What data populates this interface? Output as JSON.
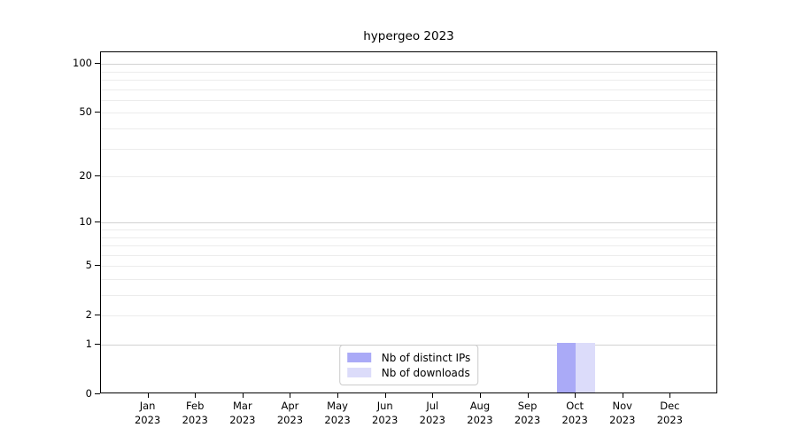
{
  "chart_data": {
    "type": "bar",
    "title": "hypergeo 2023",
    "categories": [
      "Jan",
      "Feb",
      "Mar",
      "Apr",
      "May",
      "Jun",
      "Jul",
      "Aug",
      "Sep",
      "Oct",
      "Nov",
      "Dec"
    ],
    "year": "2023",
    "series": [
      {
        "name": "Nb of distinct IPs",
        "color": "#aaaaf7",
        "values": [
          0,
          0,
          0,
          0,
          0,
          0,
          0,
          0,
          0,
          1,
          0,
          0
        ]
      },
      {
        "name": "Nb of downloads",
        "color": "#dcdcfa",
        "values": [
          0,
          0,
          0,
          0,
          0,
          0,
          0,
          0,
          0,
          1,
          0,
          0
        ]
      }
    ],
    "yscale": "log1p",
    "ylim": [
      0,
      118
    ],
    "yticks": [
      0,
      1,
      2,
      5,
      10,
      20,
      50,
      100
    ],
    "grid": {
      "major": [
        1,
        10,
        100
      ],
      "minor": [
        2,
        3,
        4,
        5,
        6,
        7,
        8,
        9,
        20,
        30,
        40,
        50,
        60,
        70,
        80,
        90
      ]
    },
    "legend_position": "lower center",
    "colors": {
      "major_grid": "#d2d2d2",
      "minor_grid": "#ececec",
      "spine": "#000000",
      "text": "#000000",
      "background": "#ffffff"
    }
  }
}
